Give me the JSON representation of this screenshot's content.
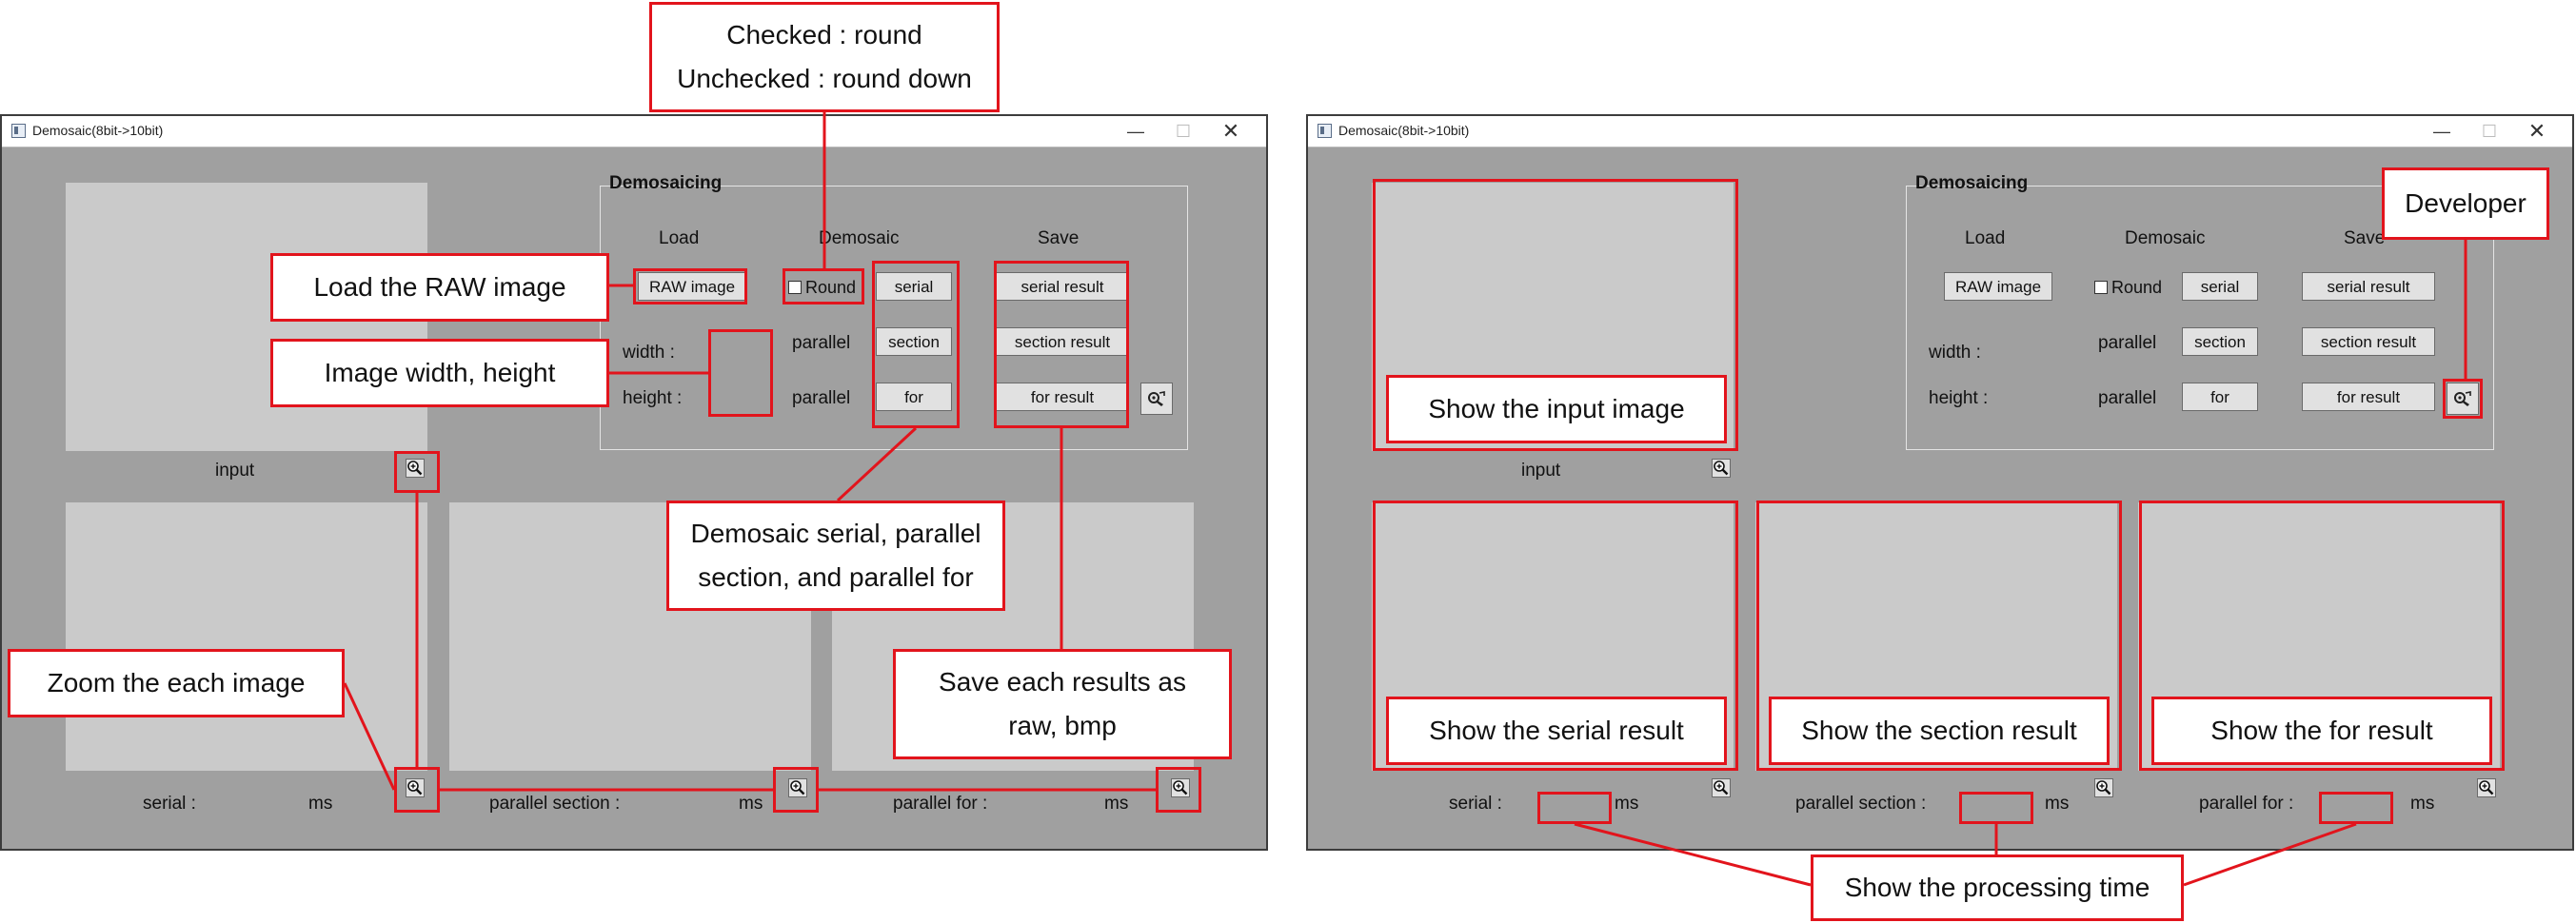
{
  "window_title": "Demosaic(8bit->10bit)",
  "controls": {
    "minimize": "—",
    "maximize": "☐",
    "close": "✕"
  },
  "groupbox": {
    "title": "Demosaicing"
  },
  "headers": {
    "load": "Load",
    "demosaic": "Demosaic",
    "save": "Save"
  },
  "buttons": {
    "raw_image": "RAW image",
    "serial": "serial",
    "section": "section",
    "for": "for",
    "serial_result": "serial result",
    "section_result": "section result",
    "for_result": "for result"
  },
  "checkbox": {
    "label": "Round",
    "checked": false
  },
  "fields": {
    "width": "width :",
    "height": "height :"
  },
  "parallel_label": "parallel",
  "image_labels": {
    "input": "input"
  },
  "timing": {
    "serial": "serial :",
    "parallel_section": "parallel section :",
    "parallel_for": "parallel for :",
    "unit": "ms"
  },
  "icons": {
    "zoom": "zoom-in-icon",
    "developer": "developer-icon"
  },
  "colors": {
    "annotation": "#e2141c",
    "window_bg": "#a0a0a0",
    "panel": "#cacaca"
  },
  "annotations": {
    "round": "Checked : round\nUnchecked : round down",
    "load_raw": "Load the RAW image",
    "width_height": "Image width, height",
    "demosaic": "Demosaic serial, parallel\nsection, and parallel for",
    "zoom": "Zoom the each image",
    "save": "Save each results as\nraw, bmp",
    "developer": "Developer",
    "show_input": "Show the input image",
    "show_serial": "Show the serial result",
    "show_section": "Show the section result",
    "show_for": "Show the for result",
    "processing_time": "Show the processing time"
  }
}
